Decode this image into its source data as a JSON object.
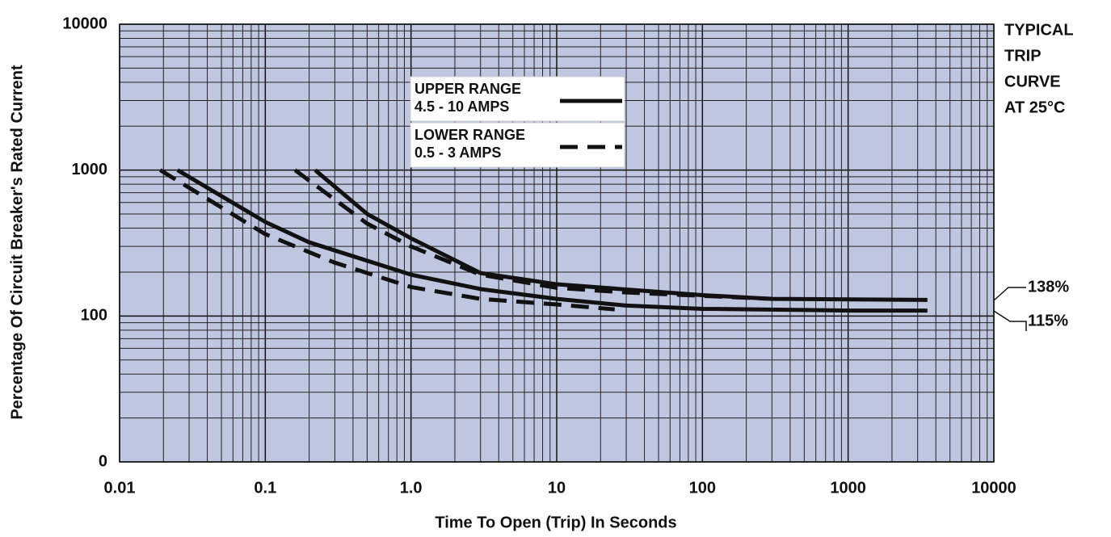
{
  "chart_data": {
    "type": "line",
    "y_label": "Percentage Of Circuit Breaker's Rated Current",
    "x_label": "Time To Open (Trip) In Seconds",
    "xscale": "log",
    "yscale": "log",
    "grid": true,
    "xlim": [
      0.01,
      10000
    ],
    "ylim": [
      10,
      10000
    ],
    "xticks": [
      0.01,
      0.1,
      {
        "value": 1,
        "label": "1.0"
      },
      10,
      100,
      1000,
      10000
    ],
    "yticks": [
      {
        "value": 10,
        "label": "0"
      },
      100,
      1000,
      10000
    ],
    "background": "#bfc6e0",
    "series": [
      {
        "name": "UPPER RANGE",
        "detail": "4.5 - 10 AMPS",
        "color": "#111111",
        "dashed": false,
        "lines": [
          {
            "x": [
              0.025,
              0.1,
              0.2,
              1,
              3,
              10,
              30,
              100,
              1000,
              3500
            ],
            "values": [
              1000,
              441,
              320,
              192,
              153,
              131,
              118,
              112,
              109,
              109
            ]
          },
          {
            "x": [
              0.22,
              0.5,
              1,
              3,
              10,
              100,
              300,
              3500
            ],
            "values": [
              1000,
              501,
              341,
              197,
              165,
              139,
              131,
              129
            ]
          }
        ]
      },
      {
        "name": "LOWER RANGE",
        "detail": "0.5 - 3 AMPS",
        "color": "#111111",
        "dashed": true,
        "lines": [
          {
            "x": [
              0.019,
              0.1,
              0.3,
              1,
              3,
              10,
              25
            ],
            "values": [
              1000,
              364,
              232,
              158,
              131,
              120,
              111
            ]
          },
          {
            "x": [
              0.16,
              0.5,
              1,
              3,
              10,
              30,
              300
            ],
            "values": [
              1000,
              430,
              300,
              192,
              156,
              145,
              131
            ]
          }
        ]
      }
    ],
    "note": [
      "TYPICAL",
      "TRIP",
      "CURVE",
      "AT 25°C"
    ],
    "annotations": [
      {
        "text": "138%",
        "value": 138
      },
      {
        "text": "115%",
        "value": 115
      }
    ]
  }
}
